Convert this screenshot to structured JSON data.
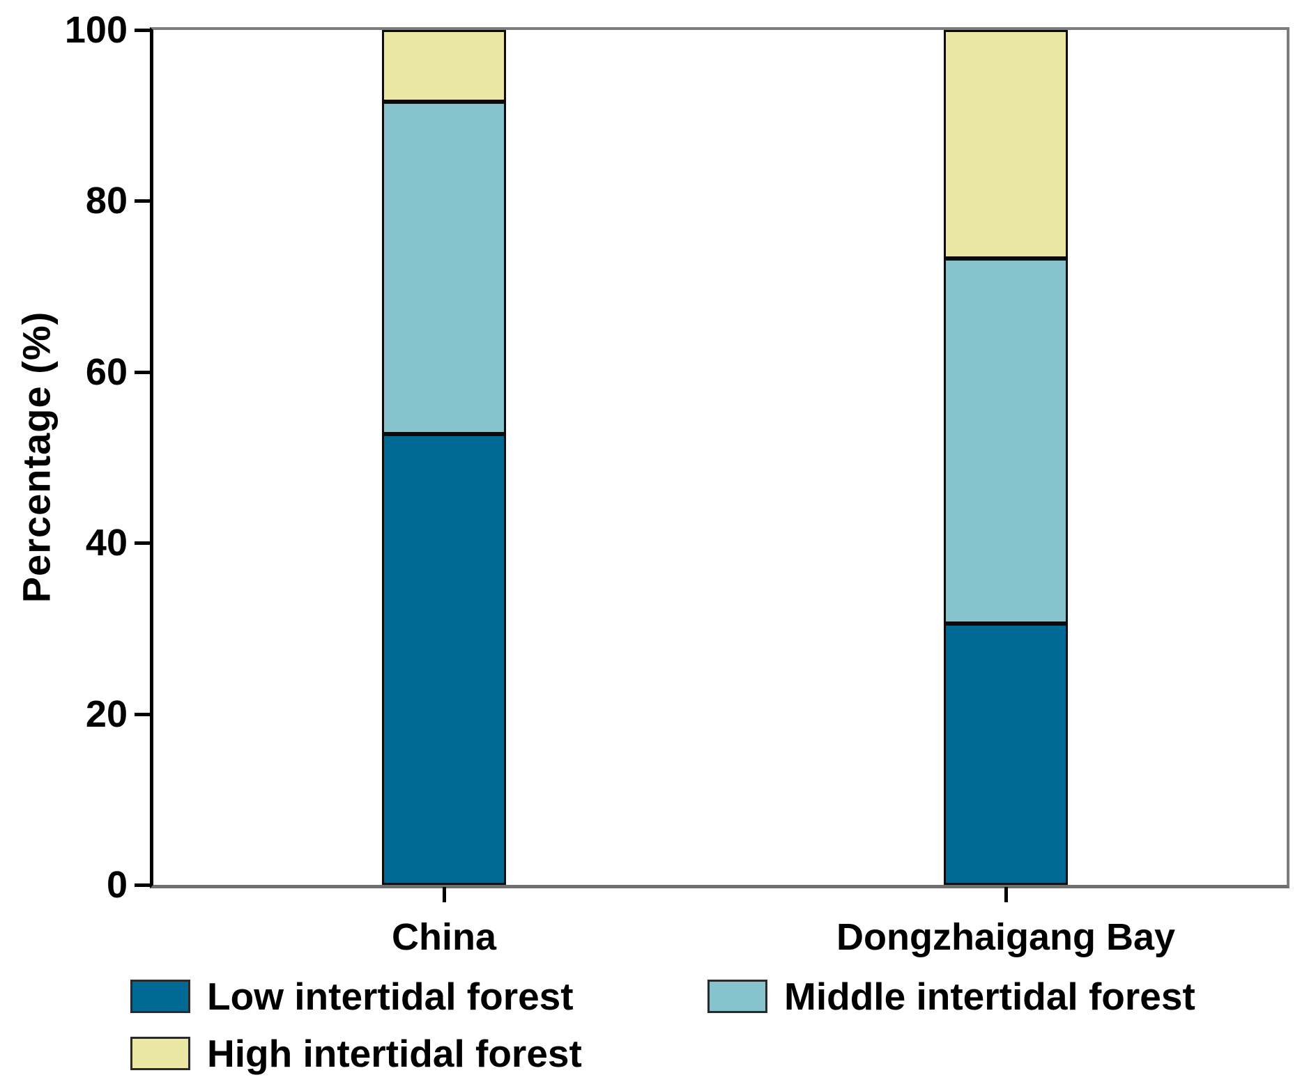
{
  "chart_data": {
    "type": "bar",
    "stacked": true,
    "title": "",
    "xlabel": "",
    "ylabel": "Percentage (%)",
    "ylim": [
      0,
      100
    ],
    "yticks": [
      0,
      20,
      40,
      60,
      80,
      100
    ],
    "grid": false,
    "legend_position": "below-plot, two rows",
    "categories": [
      "China",
      "Dongzhaigang Bay"
    ],
    "series": [
      {
        "name": "Low intertidal forest",
        "color": "#006a94",
        "values": [
          52.7,
          30.6
        ]
      },
      {
        "name": "Middle intertidal forest",
        "color": "#87c3cd",
        "values": [
          38.9,
          42.7
        ]
      },
      {
        "name": "High intertidal forest",
        "color": "#ebe8a4",
        "values": [
          8.4,
          26.7
        ]
      }
    ]
  },
  "axis_style": {
    "axis_color_left": "#000000",
    "axis_color_box": "#7d7d7d",
    "bar_outline_color": "#0b0b0b"
  }
}
